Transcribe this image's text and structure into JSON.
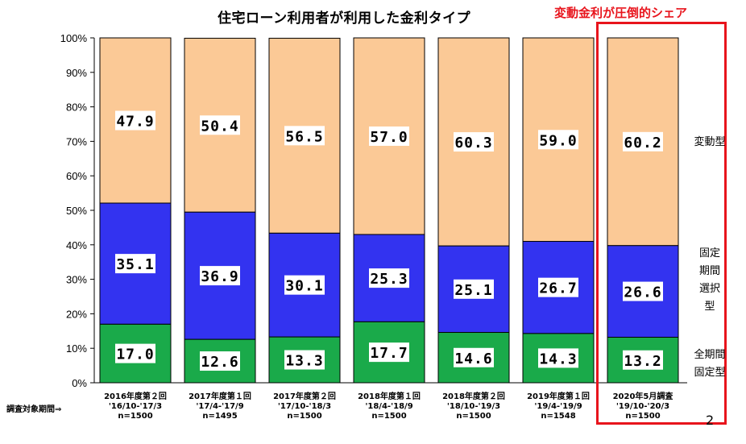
{
  "title": "住宅ローン利用者が利用した金利タイプ",
  "callout": "変動金利が圧倒的シェア",
  "page_number": "2",
  "period_label": "調査対象期間⇒",
  "legend": {
    "variable": "変動型",
    "fixed_period_lines": [
      "固定",
      "期間",
      "選択",
      "型"
    ],
    "full_fixed_lines": [
      "全期間",
      "固定型"
    ]
  },
  "colors": {
    "variable": "#fbc996",
    "fixed_period": "#3333f0",
    "full_fixed": "#1aaa4a",
    "highlight": "#e8141c"
  },
  "chart_data": {
    "type": "bar",
    "stacked": true,
    "percent_axis": true,
    "ylim": [
      0,
      100
    ],
    "yticks": [
      "0%",
      "10%",
      "20%",
      "30%",
      "40%",
      "50%",
      "60%",
      "70%",
      "80%",
      "90%",
      "100%"
    ],
    "categories": [
      [
        "2016年度第２回",
        "'16/10-'17/3",
        "n=1500"
      ],
      [
        "2017年度第１回",
        "'17/4-'17/9",
        "n=1495"
      ],
      [
        "2017年度第２回",
        "'17/10-'18/3",
        "n=1500"
      ],
      [
        "2018年度第１回",
        "'18/4-'18/9",
        "n=1500"
      ],
      [
        "2018年度第２回",
        "'18/10-'19/3",
        "n=1500"
      ],
      [
        "2019年度第１回",
        "'19/4-'19/9",
        "n=1548"
      ],
      [
        "2020年5月調査",
        "'19/10-'20/3",
        "n=1500"
      ]
    ],
    "series": [
      {
        "key": "full_fixed",
        "name": "全期間固定型",
        "values": [
          17.0,
          12.6,
          13.3,
          17.7,
          14.6,
          14.3,
          13.2
        ],
        "labels": [
          "17.0",
          "12.6",
          "13.3",
          "17.7",
          "14.6",
          "14.3",
          "13.2"
        ]
      },
      {
        "key": "fixed_period",
        "name": "固定期間選択型",
        "values": [
          35.1,
          36.9,
          30.1,
          25.3,
          25.1,
          26.7,
          26.6
        ],
        "labels": [
          "35.1",
          "36.9",
          "30.1",
          "25.3",
          "25.1",
          "26.7",
          "26.6"
        ]
      },
      {
        "key": "variable",
        "name": "変動型",
        "values": [
          47.9,
          50.4,
          56.5,
          57.0,
          60.3,
          59.0,
          60.2
        ],
        "labels": [
          "47.9",
          "50.4",
          "56.5",
          "57.0",
          "60.3",
          "59.0",
          "60.2"
        ]
      }
    ],
    "grid": false,
    "legend_position": "right"
  }
}
